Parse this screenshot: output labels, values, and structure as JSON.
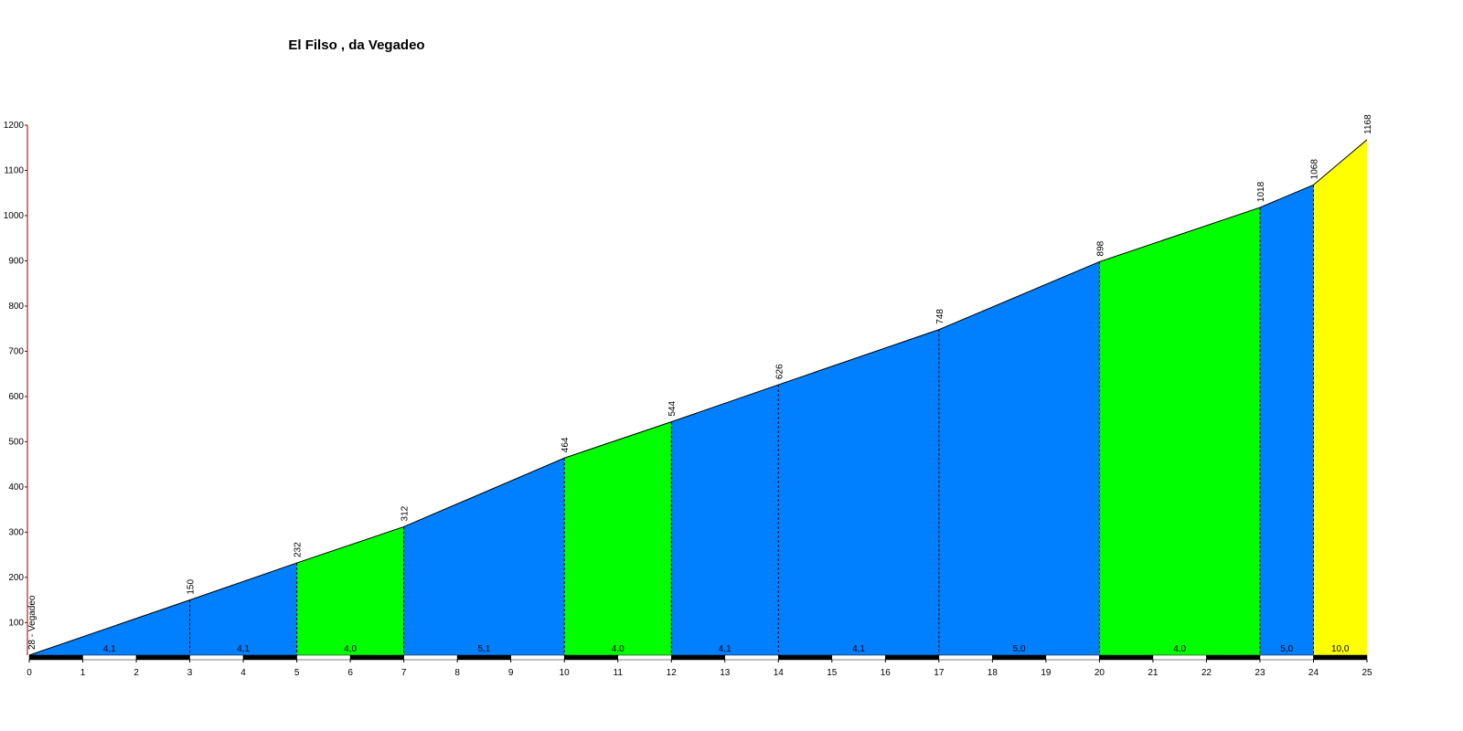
{
  "chart_data": {
    "type": "area",
    "title": "El Filso , da Vegadeo",
    "x": [
      0,
      3,
      5,
      7,
      10,
      12,
      14,
      17,
      20,
      23,
      24,
      25
    ],
    "values": [
      28,
      150,
      232,
      312,
      464,
      544,
      626,
      748,
      898,
      1018,
      1068,
      1168
    ],
    "value_labels": [
      "28 - Vegadeo",
      "150",
      "232",
      "312",
      "464",
      "544",
      "626",
      "748",
      "898",
      "1018",
      "1068",
      "1168"
    ],
    "segments": {
      "values": [
        4.1,
        4.1,
        4.0,
        5.1,
        4.0,
        4.1,
        4.1,
        5.0,
        4.0,
        5.0,
        10.0
      ],
      "value_labels": [
        "4,1",
        "4,1",
        "4,0",
        "5,1",
        "4,0",
        "4,1",
        "4,1",
        "5,0",
        "4,0",
        "5,0",
        "10,0"
      ],
      "colors": [
        "#0080ff",
        "#0080ff",
        "#00ff00",
        "#0080ff",
        "#00ff00",
        "#0080ff",
        "#0080ff",
        "#0080ff",
        "#00ff00",
        "#0080ff",
        "#ffff00"
      ]
    },
    "xlim": [
      0,
      25
    ],
    "xticks": [
      0,
      1,
      2,
      3,
      4,
      5,
      6,
      7,
      8,
      9,
      10,
      11,
      12,
      13,
      14,
      15,
      16,
      17,
      18,
      19,
      20,
      21,
      22,
      23,
      24,
      25
    ],
    "ylim": [
      28,
      1200
    ],
    "yticks": [
      100,
      200,
      300,
      400,
      500,
      600,
      700,
      800,
      900,
      1000,
      1100,
      1200
    ]
  }
}
